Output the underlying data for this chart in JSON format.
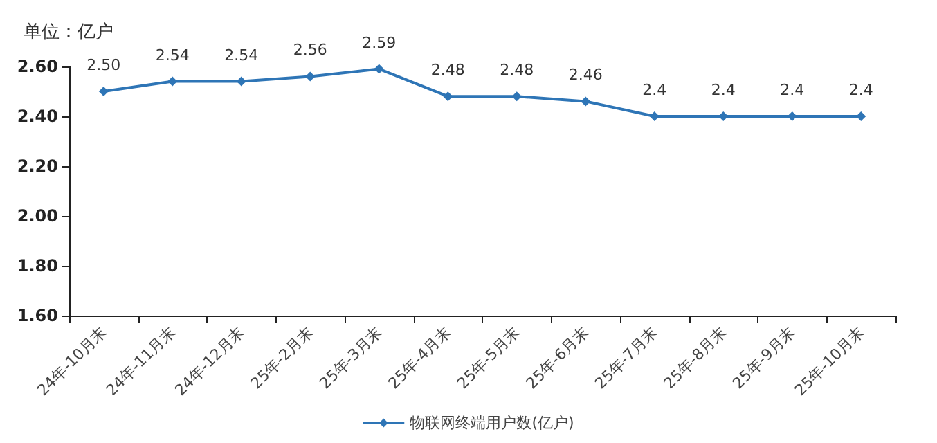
{
  "chart_data": {
    "type": "line",
    "ylabel": "单位：亿户",
    "categories": [
      "24年-10月末",
      "24年-11月末",
      "24年-12月末",
      "25年-2月末",
      "25年-3月末",
      "25年-4月末",
      "25年-5月末",
      "25年-6月末",
      "25年-7月末",
      "25年-8月末",
      "25年-9月末",
      "25年-10月末"
    ],
    "series": [
      {
        "name": "物联网终端用户数(亿户)",
        "color": "#2e75b6",
        "values": [
          2.5,
          2.54,
          2.54,
          2.56,
          2.59,
          2.48,
          2.48,
          2.46,
          2.4,
          2.4,
          2.4,
          2.4
        ],
        "value_labels": [
          "2.50",
          "2.54",
          "2.54",
          "2.56",
          "2.59",
          "2.48",
          "2.48",
          "2.46",
          "2.4",
          "2.4",
          "2.4",
          "2.4"
        ]
      }
    ],
    "ylim": [
      1.6,
      2.6
    ],
    "yticks": [
      {
        "value": 1.6,
        "label": "1.60"
      },
      {
        "value": 1.8,
        "label": "1.80"
      },
      {
        "value": 2.0,
        "label": "2.00"
      },
      {
        "value": 2.2,
        "label": "2.20"
      },
      {
        "value": 2.4,
        "label": "2.40"
      },
      {
        "value": 2.6,
        "label": "2.60"
      }
    ],
    "grid": false,
    "legend": "bottom",
    "marker": "diamond",
    "line_style": "solid"
  }
}
